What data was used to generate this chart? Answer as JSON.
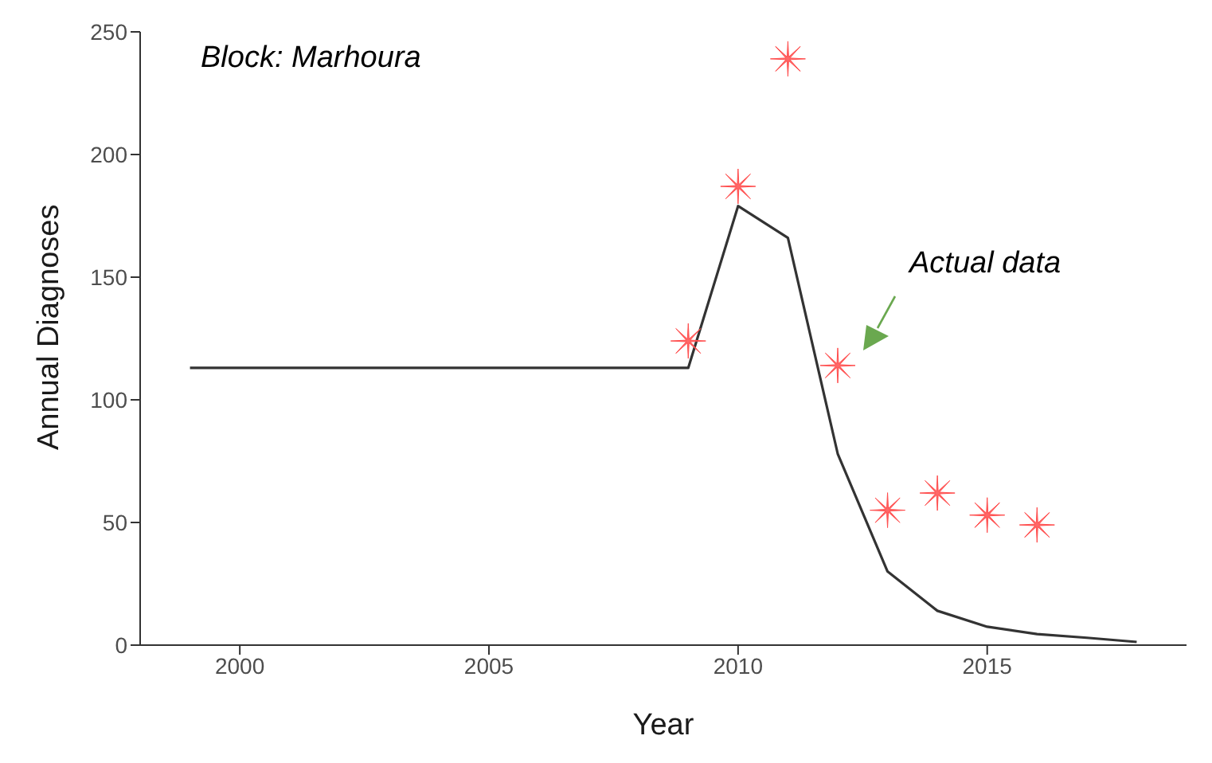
{
  "chart_data": {
    "type": "line",
    "xlabel": "Year",
    "ylabel": "Annual Diagnoses",
    "xlim": [
      1998,
      2019
    ],
    "xticks": [
      2000,
      2005,
      2010,
      2015
    ],
    "ylim": [
      0,
      250
    ],
    "yticks": [
      0,
      50,
      100,
      150,
      200,
      250
    ],
    "grid": false,
    "series": [
      {
        "color": "#333333",
        "x": [
          1999,
          2000,
          2001,
          2002,
          2003,
          2004,
          2005,
          2006,
          2007,
          2008,
          2009,
          2010,
          2011,
          2012,
          2013,
          2014,
          2015,
          2016,
          2017,
          2018
        ],
        "values": [
          113,
          113,
          113,
          113,
          113,
          113,
          113,
          113,
          113,
          113,
          113,
          179,
          166,
          78,
          30,
          14,
          7.5,
          4.5,
          3,
          1.3
        ],
        "marker": "none"
      },
      {
        "type": "scatter",
        "color": "#ff4d4d",
        "x": [
          2009,
          2010,
          2011,
          2012,
          2013,
          2014,
          2015,
          2016
        ],
        "values": [
          124,
          187,
          239,
          114,
          55,
          62,
          53,
          49
        ],
        "marker": "cross"
      }
    ],
    "annotations": [
      "Block: Marhoura",
      "Actual data"
    ]
  }
}
